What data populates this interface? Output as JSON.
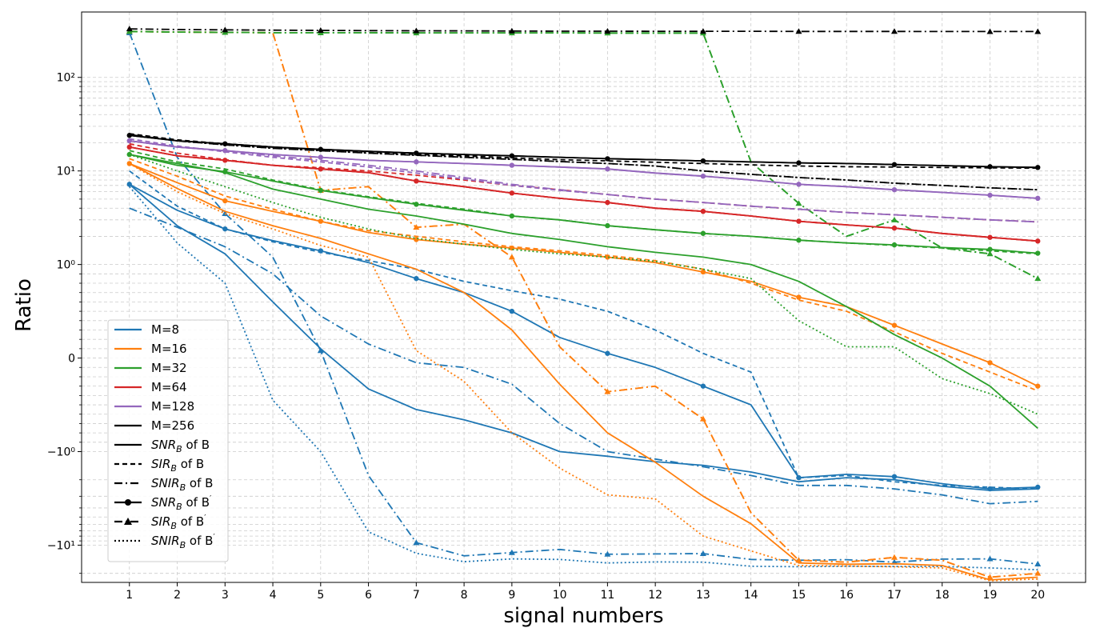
{
  "chart_data": {
    "type": "line",
    "title": "",
    "xlabel": "signal numbers",
    "ylabel": "Ratio",
    "x": [
      1,
      2,
      3,
      4,
      5,
      6,
      7,
      8,
      9,
      10,
      11,
      12,
      13,
      14,
      15,
      16,
      17,
      18,
      19,
      20
    ],
    "xlim": [
      0,
      21
    ],
    "yscale": "symlog",
    "linthresh": 1,
    "ylim": [
      -25,
      500
    ],
    "y_ticks": [
      {
        "value": -10,
        "label": "−10¹"
      },
      {
        "value": -1,
        "label": "−10⁰"
      },
      {
        "value": 0,
        "label": "0"
      },
      {
        "value": 1,
        "label": "10⁰"
      },
      {
        "value": 10,
        "label": "10¹"
      },
      {
        "value": 100,
        "label": "10²"
      }
    ],
    "grid": true,
    "legend_position": "lower-left",
    "colors": {
      "M=8": "#1f77b4",
      "M=16": "#ff7f0e",
      "M=32": "#2ca02c",
      "M=64": "#d62728",
      "M=128": "#9467bd",
      "M=256": "#000000"
    },
    "legend": {
      "colors": [
        {
          "label": "M=8",
          "color": "#1f77b4"
        },
        {
          "label": "M=16",
          "color": "#ff7f0e"
        },
        {
          "label": "M=32",
          "color": "#2ca02c"
        },
        {
          "label": "M=64",
          "color": "#d62728"
        },
        {
          "label": "M=128",
          "color": "#9467bd"
        },
        {
          "label": "M=256",
          "color": "#000000"
        }
      ],
      "styles": [
        {
          "main": "SNR",
          "sub": "B",
          "suffix": " of B",
          "prime": false,
          "dash": "solid",
          "marker": "none"
        },
        {
          "main": "SIR",
          "sub": "B",
          "suffix": " of B",
          "prime": false,
          "dash": "dashed",
          "marker": "none"
        },
        {
          "main": "SNIR",
          "sub": "B",
          "suffix": " of B",
          "prime": false,
          "dash": "dashdot",
          "marker": "none"
        },
        {
          "main": "SNR",
          "sub": "B",
          "suffix": " of B",
          "prime": true,
          "dash": "solid",
          "marker": "circle"
        },
        {
          "main": "SIR",
          "sub": "B",
          "suffix": " of B",
          "prime": true,
          "dash": "dashdot",
          "marker": "triangle"
        },
        {
          "main": "SNIR",
          "sub": "B",
          "suffix": " of B",
          "prime": true,
          "dash": "dotted",
          "marker": "none"
        }
      ]
    },
    "series": [
      {
        "color": "#1f77b4",
        "dash": "solid",
        "marker": "none",
        "values": [
          7.2,
          2.6,
          1.3,
          0.6,
          0.1,
          -0.33,
          -0.55,
          -0.66,
          -0.8,
          -1.0,
          -1.12,
          -1.28,
          -1.4,
          -1.65,
          -2.1,
          -1.9,
          -2.0,
          -2.35,
          -2.6,
          -2.5
        ]
      },
      {
        "color": "#1f77b4",
        "dash": "dashed",
        "marker": "none",
        "values": [
          10,
          4.2,
          2.4,
          1.75,
          1.35,
          1.1,
          0.95,
          0.82,
          0.72,
          0.63,
          0.5,
          0.3,
          0.05,
          -0.15,
          -1.9,
          -1.8,
          -2.1,
          -2.3,
          -2.4,
          -2.5
        ]
      },
      {
        "color": "#1f77b4",
        "dash": "dashdot",
        "marker": "none",
        "values": [
          4,
          2.5,
          1.55,
          0.9,
          0.45,
          0.15,
          -0.05,
          -0.1,
          -0.28,
          -0.7,
          -1.0,
          -1.2,
          -1.45,
          -1.8,
          -2.3,
          -2.3,
          -2.5,
          -2.9,
          -3.6,
          -3.4
        ]
      },
      {
        "color": "#1f77b4",
        "dash": "solid",
        "marker": "circle",
        "values": [
          7.2,
          3.8,
          2.4,
          1.8,
          1.4,
          1.05,
          0.85,
          0.7,
          0.5,
          0.22,
          0.05,
          -0.1,
          -0.3,
          -0.5,
          -1.9,
          -1.75,
          -1.85,
          -2.2,
          -2.5,
          -2.4
        ]
      },
      {
        "color": "#1f77b4",
        "dash": "dashdot",
        "marker": "triangle",
        "values": [
          300,
          14,
          3.5,
          1.2,
          0.08,
          -1.8,
          -9.4,
          -13,
          -12,
          -11.1,
          -12.5,
          -12.4,
          -12.3,
          -14.2,
          -14.5,
          -14.3,
          -15.2,
          -14.1,
          -14,
          -15.9
        ]
      },
      {
        "color": "#1f77b4",
        "dash": "dotted",
        "marker": "none",
        "values": [
          6.8,
          1.7,
          0.8,
          -0.45,
          -1.0,
          -7.2,
          -12.2,
          -15,
          -14,
          -14.2,
          -15.5,
          -15.1,
          -15.2,
          -16.8,
          -17,
          -16.8,
          -16.9,
          -16.9,
          -17.5,
          -18.3
        ]
      },
      {
        "color": "#ff7f0e",
        "dash": "solid",
        "marker": "none",
        "values": [
          12,
          6.5,
          3.7,
          2.6,
          1.9,
          1.3,
          0.95,
          0.7,
          0.3,
          -0.28,
          -0.8,
          -1.3,
          -3.0,
          -5.9,
          -15.5,
          -16,
          -15.8,
          -16.5,
          -23.5,
          -22
        ]
      },
      {
        "color": "#ff7f0e",
        "dash": "dashed",
        "marker": "none",
        "values": [
          13.5,
          8.8,
          5.4,
          3.9,
          2.9,
          2.3,
          2.0,
          1.75,
          1.55,
          1.4,
          1.25,
          1.1,
          0.95,
          0.8,
          0.62,
          0.5,
          0.28,
          0.05,
          -0.15,
          -0.35
        ]
      },
      {
        "color": "#ff7f0e",
        "dash": "dashdot",
        "marker": "none",
        "values": [
          310,
          305,
          303,
          300,
          6.2,
          6.8,
          2.5,
          2.7,
          1.2,
          0.12,
          -0.36,
          -0.3,
          -0.65,
          -4.5,
          -14.5,
          -15.2,
          -13.5,
          -14.5,
          -22,
          -20
        ]
      },
      {
        "color": "#ff7f0e",
        "dash": "solid",
        "marker": "circle",
        "values": [
          12,
          7.5,
          4.8,
          3.7,
          2.9,
          2.2,
          1.85,
          1.65,
          1.5,
          1.35,
          1.2,
          1.05,
          0.92,
          0.82,
          0.65,
          0.55,
          0.35,
          0.15,
          -0.05,
          -0.3
        ]
      },
      {
        "color": "#ff7f0e",
        "dash": "dashdot",
        "marker": "triangle",
        "values": [
          310,
          305,
          303,
          300,
          6.2,
          6.8,
          2.5,
          2.7,
          1.2,
          0.12,
          -0.36,
          -0.3,
          -0.65,
          -4.5,
          -14.5,
          -15.2,
          -13.5,
          -14.5,
          -22,
          -20
        ]
      },
      {
        "color": "#ff7f0e",
        "dash": "dotted",
        "marker": "none",
        "values": [
          12,
          6,
          3.5,
          2.4,
          1.6,
          1.2,
          0.08,
          -0.25,
          -0.8,
          -1.5,
          -2.9,
          -3.2,
          -8,
          -11.5,
          -16.5,
          -16.7,
          -17,
          -17.5,
          -24,
          -23
        ]
      },
      {
        "color": "#2ca02c",
        "dash": "solid",
        "marker": "none",
        "values": [
          15,
          12,
          9.6,
          6.4,
          5.0,
          3.9,
          3.3,
          2.7,
          2.15,
          1.85,
          1.55,
          1.35,
          1.2,
          1.0,
          0.82,
          0.55,
          0.25,
          0.0,
          -0.3,
          -0.75
        ]
      },
      {
        "color": "#2ca02c",
        "dash": "dashed",
        "marker": "none",
        "values": [
          16.5,
          12.5,
          10.5,
          8.0,
          6.3,
          5.3,
          4.5,
          3.9,
          3.3,
          3.0,
          2.6,
          2.35,
          2.15,
          2.0,
          1.82,
          1.7,
          1.6,
          1.5,
          1.4,
          1.3
        ]
      },
      {
        "color": "#2ca02c",
        "dash": "dashdot",
        "marker": "none",
        "values": [
          310,
          305,
          303,
          300,
          300,
          300,
          299,
          299,
          299,
          299,
          298,
          298,
          298,
          12.5,
          4.5,
          2.0,
          3.0,
          1.5,
          1.3,
          0.85
        ]
      },
      {
        "color": "#2ca02c",
        "dash": "solid",
        "marker": "circle",
        "values": [
          15,
          11.5,
          9.8,
          7.8,
          6.2,
          5.2,
          4.4,
          3.8,
          3.3,
          3.0,
          2.6,
          2.35,
          2.15,
          2.0,
          1.82,
          1.7,
          1.62,
          1.52,
          1.45,
          1.32
        ]
      },
      {
        "color": "#2ca02c",
        "dash": "dashdot",
        "marker": "triangle",
        "values": [
          310,
          305,
          303,
          300,
          300,
          300,
          299,
          299,
          299,
          299,
          298,
          298,
          298,
          12.5,
          4.5,
          2.0,
          3.0,
          1.5,
          1.3,
          0.85
        ]
      },
      {
        "color": "#2ca02c",
        "dash": "dotted",
        "marker": "none",
        "values": [
          15,
          10,
          6.8,
          4.6,
          3.2,
          2.4,
          1.9,
          1.65,
          1.45,
          1.3,
          1.2,
          1.08,
          0.95,
          0.85,
          0.4,
          0.12,
          0.12,
          -0.22,
          -0.38,
          -0.6
        ]
      },
      {
        "color": "#d62728",
        "dash": "solid",
        "marker": "none",
        "values": [
          18,
          14.5,
          13,
          11.5,
          10.5,
          9.6,
          7.8,
          6.8,
          5.8,
          5.1,
          4.6,
          4.0,
          3.7,
          3.3,
          2.9,
          2.65,
          2.45,
          2.15,
          1.95,
          1.78
        ]
      },
      {
        "color": "#d62728",
        "dash": "dashed",
        "marker": "none",
        "values": [
          19.5,
          15.5,
          13.2,
          11.5,
          10.8,
          10.0,
          9.0,
          8.0,
          7.0,
          6.3,
          5.6,
          5.0,
          4.6,
          4.2,
          3.9,
          3.6,
          3.4,
          3.2,
          3.0,
          2.85
        ]
      },
      {
        "color": "#d62728",
        "dash": "dashdot",
        "marker": "none",
        "values": [
          18,
          14.5,
          13,
          11.5,
          10.5,
          9.6,
          7.8,
          6.8,
          5.8,
          5.1,
          4.6,
          4.0,
          3.7,
          3.3,
          2.9,
          2.65,
          2.45,
          2.15,
          1.95,
          1.78
        ]
      },
      {
        "color": "#d62728",
        "dash": "solid",
        "marker": "circle",
        "values": [
          18,
          14.5,
          13,
          11.5,
          10.5,
          9.6,
          7.8,
          6.8,
          5.8,
          5.1,
          4.6,
          4.0,
          3.7,
          3.3,
          2.9,
          2.65,
          2.45,
          2.15,
          1.95,
          1.78
        ]
      },
      {
        "color": "#9467bd",
        "dash": "solid",
        "marker": "none",
        "values": [
          21,
          18,
          16.5,
          15,
          14,
          13,
          12.5,
          12,
          11.5,
          11,
          10.5,
          9.5,
          8.8,
          8.0,
          7.2,
          6.8,
          6.3,
          5.9,
          5.5,
          5.1
        ]
      },
      {
        "color": "#9467bd",
        "dash": "dashed",
        "marker": "none",
        "values": [
          22,
          18.5,
          16,
          14,
          12.5,
          11,
          9.5,
          8.2,
          7.0,
          6.2,
          5.6,
          5.0,
          4.6,
          4.2,
          3.9,
          3.6,
          3.4,
          3.2,
          3.0,
          2.85
        ]
      },
      {
        "color": "#9467bd",
        "dash": "dashdot",
        "marker": "none",
        "values": [
          21,
          18,
          16.5,
          14.5,
          13,
          11.5,
          10,
          8.5,
          7.2,
          6.3,
          5.6,
          5.0,
          4.6,
          4.2,
          3.9,
          3.6,
          3.4,
          3.2,
          3.0,
          2.85
        ]
      },
      {
        "color": "#9467bd",
        "dash": "solid",
        "marker": "circle",
        "values": [
          21,
          18,
          16.5,
          15,
          14,
          13,
          12.5,
          12,
          11.5,
          11,
          10.5,
          9.5,
          8.8,
          8.0,
          7.2,
          6.8,
          6.3,
          5.9,
          5.5,
          5.1
        ]
      },
      {
        "color": "#000000",
        "dash": "solid",
        "marker": "none",
        "values": [
          24,
          21,
          19.5,
          18,
          17,
          16.2,
          15.5,
          15,
          14.5,
          14,
          13.5,
          13.2,
          12.8,
          12.5,
          12.2,
          12,
          11.7,
          11.4,
          11.1,
          10.9
        ]
      },
      {
        "color": "#000000",
        "dash": "dashed",
        "marker": "none",
        "values": [
          25,
          21.5,
          19.5,
          18,
          17,
          16,
          15,
          14.5,
          13.8,
          13.2,
          12.8,
          12.4,
          12,
          11.6,
          11.3,
          11.1,
          11,
          10.9,
          10.8,
          10.7
        ]
      },
      {
        "color": "#000000",
        "dash": "dashdot",
        "marker": "none",
        "values": [
          24.5,
          21,
          19,
          17.5,
          16.5,
          15.5,
          14.7,
          14,
          13.3,
          12.6,
          12,
          11.3,
          10,
          9.2,
          8.5,
          8.0,
          7.4,
          7.0,
          6.6,
          6.3
        ]
      },
      {
        "color": "#000000",
        "dash": "solid",
        "marker": "circle",
        "values": [
          24,
          21,
          19.5,
          18,
          17,
          16.2,
          15.5,
          15,
          14.5,
          14,
          13.5,
          13.2,
          12.8,
          12.5,
          12.2,
          12,
          11.7,
          11.4,
          11.1,
          10.9
        ]
      },
      {
        "color": "#000000",
        "dash": "dashdot",
        "marker": "triangle",
        "values": [
          330,
          325,
          322,
          320,
          318,
          316,
          315,
          314,
          313,
          312,
          312,
          311,
          311,
          311,
          310,
          310,
          310,
          309,
          309,
          309
        ]
      },
      {
        "color": "#000000",
        "dash": "dotted",
        "marker": "none",
        "values": [
          24.5,
          21,
          19,
          17.5,
          16.5,
          15.5,
          14.7,
          14,
          13.3,
          12.6,
          12,
          11.3,
          10,
          9.2,
          8.5,
          8.0,
          7.4,
          7.0,
          6.6,
          6.3
        ]
      }
    ]
  }
}
